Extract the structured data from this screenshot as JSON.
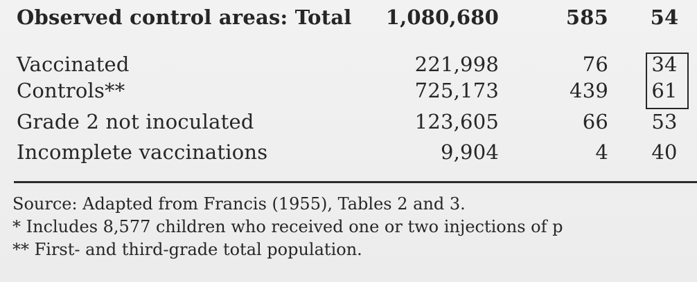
{
  "table": {
    "header": {
      "label": "Observed control areas: Total",
      "c1": "1,080,680",
      "c2": "585",
      "c3": "54"
    },
    "rows": [
      {
        "label": "Vaccinated",
        "c1": "221,998",
        "c2": "76",
        "c3": "34"
      },
      {
        "label": "Controls**",
        "c1": "725,173",
        "c2": "439",
        "c3": "61"
      },
      {
        "label": "Grade 2 not inoculated",
        "c1": "123,605",
        "c2": "66",
        "c3": "53"
      },
      {
        "label": "Incomplete vaccinations",
        "c1": "9,904",
        "c2": "4",
        "c3": "40"
      }
    ]
  },
  "footnotes": {
    "source": "Source: Adapted from Francis (1955), Tables 2 and 3.",
    "note1": "* Includes 8,577 children who received one or two injections of p",
    "note2": "** First- and third-grade total population."
  }
}
